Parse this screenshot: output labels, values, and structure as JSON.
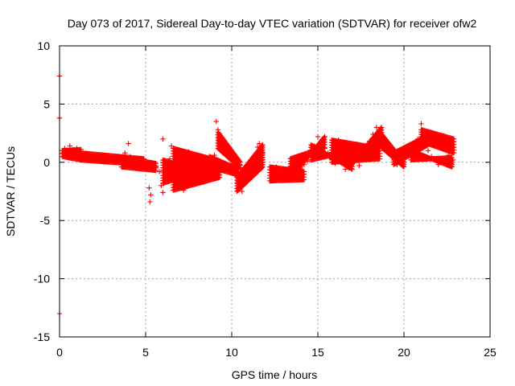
{
  "chart_data": {
    "type": "scatter",
    "title": "Day 073 of 2017, Sidereal Day-to-day VTEC variation (SDTVAR) for receiver ofw2",
    "xlabel": "GPS time / hours",
    "ylabel": "SDTVAR / TECUs",
    "xlim": [
      0,
      25
    ],
    "ylim": [
      -15,
      10
    ],
    "xticks": [
      0,
      5,
      10,
      15,
      20,
      25
    ],
    "yticks": [
      -15,
      -10,
      -5,
      0,
      5,
      10
    ],
    "xtick_labels": [
      "0",
      "5",
      "10",
      "15",
      "20",
      "25"
    ],
    "ytick_labels": [
      "-15",
      "-10",
      "-5",
      "0",
      "5",
      "10"
    ],
    "grid": true,
    "marker": "plus",
    "series_color": "#ff0000",
    "series": [
      {
        "name": "SDTVAR",
        "points": [
          [
            0.0,
            7.4
          ],
          [
            0.0,
            3.8
          ],
          [
            0.0,
            -13.0
          ],
          [
            0.2,
            0.8
          ],
          [
            0.3,
            1.2
          ],
          [
            0.4,
            0.6
          ],
          [
            0.5,
            1.0
          ],
          [
            0.6,
            1.4
          ],
          [
            0.7,
            0.5
          ],
          [
            0.8,
            1.1
          ],
          [
            0.9,
            0.7
          ],
          [
            1.0,
            1.2
          ],
          [
            1.1,
            0.4
          ],
          [
            1.2,
            0.9
          ],
          [
            1.4,
            0.6
          ],
          [
            1.6,
            0.3
          ],
          [
            1.8,
            0.5
          ],
          [
            2.0,
            0.2
          ],
          [
            2.2,
            0.4
          ],
          [
            2.4,
            0.1
          ],
          [
            2.6,
            0.3
          ],
          [
            2.8,
            0.5
          ],
          [
            3.0,
            0.2
          ],
          [
            3.2,
            0.0
          ],
          [
            3.4,
            0.4
          ],
          [
            3.6,
            0.2
          ],
          [
            3.8,
            0.8
          ],
          [
            4.0,
            1.6
          ],
          [
            4.1,
            0.5
          ],
          [
            4.2,
            -0.2
          ],
          [
            4.4,
            0.3
          ],
          [
            4.6,
            0.1
          ],
          [
            4.8,
            -0.2
          ],
          [
            5.0,
            -0.5
          ],
          [
            5.2,
            -0.3
          ],
          [
            5.4,
            -0.6
          ],
          [
            5.6,
            -0.4
          ],
          [
            5.8,
            -0.8
          ],
          [
            5.2,
            -2.2
          ],
          [
            5.3,
            -2.8
          ],
          [
            5.25,
            -3.4
          ],
          [
            5.9,
            -2.0
          ],
          [
            6.0,
            -2.6
          ],
          [
            6.0,
            2.0
          ],
          [
            6.2,
            -0.5
          ],
          [
            6.4,
            0.3
          ],
          [
            6.5,
            1.4
          ],
          [
            6.6,
            -1.0
          ],
          [
            6.8,
            -1.8
          ],
          [
            7.0,
            -0.8
          ],
          [
            7.2,
            -2.4
          ],
          [
            7.4,
            -1.2
          ],
          [
            7.5,
            0.9
          ],
          [
            7.6,
            -0.6
          ],
          [
            7.8,
            0.1
          ],
          [
            8.0,
            -0.4
          ],
          [
            8.2,
            -1.0
          ],
          [
            8.4,
            -0.7
          ],
          [
            8.6,
            -1.2
          ],
          [
            8.8,
            -0.2
          ],
          [
            9.0,
            0.6
          ],
          [
            9.1,
            3.5
          ],
          [
            9.2,
            2.8
          ],
          [
            9.3,
            2.2
          ],
          [
            9.4,
            1.5
          ],
          [
            9.6,
            0.9
          ],
          [
            9.8,
            0.4
          ],
          [
            10.0,
            -0.1
          ],
          [
            10.2,
            -0.8
          ],
          [
            10.4,
            -1.6
          ],
          [
            10.6,
            -2.5
          ],
          [
            10.8,
            -1.8
          ],
          [
            11.0,
            -1.1
          ],
          [
            11.2,
            -0.6
          ],
          [
            11.4,
            -0.2
          ],
          [
            11.5,
            1.3
          ],
          [
            11.6,
            1.6
          ],
          [
            11.8,
            0.8
          ],
          [
            12.4,
            -1.0
          ],
          [
            12.6,
            -0.4
          ],
          [
            12.8,
            -1.4
          ],
          [
            13.0,
            -0.8
          ],
          [
            13.2,
            -1.2
          ],
          [
            13.4,
            -0.6
          ],
          [
            13.6,
            -1.4
          ],
          [
            13.8,
            -1.0
          ],
          [
            14.0,
            -0.5
          ],
          [
            14.2,
            -0.2
          ],
          [
            14.4,
            0.1
          ],
          [
            14.6,
            0.6
          ],
          [
            14.8,
            1.4
          ],
          [
            15.0,
            2.2
          ],
          [
            15.2,
            1.8
          ],
          [
            15.4,
            1.2
          ],
          [
            15.6,
            0.8
          ],
          [
            15.8,
            0.3
          ],
          [
            16.0,
            -0.1
          ],
          [
            16.2,
            1.9
          ],
          [
            16.4,
            0.6
          ],
          [
            16.6,
            -0.6
          ],
          [
            16.8,
            -0.4
          ],
          [
            17.0,
            0.9
          ],
          [
            17.2,
            0.3
          ],
          [
            17.4,
            -0.3
          ],
          [
            17.6,
            0.5
          ],
          [
            17.8,
            1.2
          ],
          [
            18.0,
            1.8
          ],
          [
            18.2,
            2.4
          ],
          [
            18.4,
            3.0
          ],
          [
            18.6,
            2.6
          ],
          [
            18.8,
            1.9
          ],
          [
            19.0,
            1.3
          ],
          [
            19.2,
            0.8
          ],
          [
            19.4,
            0.2
          ],
          [
            19.6,
            -0.2
          ],
          [
            19.8,
            0.3
          ],
          [
            20.0,
            0.7
          ],
          [
            20.2,
            1.0
          ],
          [
            20.4,
            1.3
          ],
          [
            20.6,
            1.6
          ],
          [
            20.8,
            2.0
          ],
          [
            21.0,
            3.3
          ],
          [
            21.1,
            2.6
          ],
          [
            21.2,
            1.8
          ],
          [
            21.4,
            1.0
          ],
          [
            21.6,
            0.5
          ],
          [
            21.8,
            0.2
          ],
          [
            22.0,
            -0.2
          ],
          [
            22.2,
            1.4
          ],
          [
            22.4,
            2.1
          ],
          [
            22.6,
            0.6
          ],
          [
            22.8,
            1.2
          ],
          [
            22.85,
            0.2
          ]
        ],
        "bands": [
          {
            "x0": 0.15,
            "x1": 1.25,
            "y0a": 0.5,
            "y0b": 1.0,
            "y1a": 0.2,
            "y1b": 1.1
          },
          {
            "x0": 1.2,
            "x1": 4.9,
            "y0a": 0.2,
            "y0b": 0.8,
            "y1a": -0.2,
            "y1b": 0.3
          },
          {
            "x0": 3.6,
            "x1": 5.6,
            "y0a": 0.4,
            "y0b": -0.4,
            "y1a": -0.1,
            "y1b": -0.7
          },
          {
            "x0": 6.0,
            "x1": 8.7,
            "y0a": 0.2,
            "y0b": -1.8,
            "y1a": -1.0,
            "y1b": -0.6
          },
          {
            "x0": 6.6,
            "x1": 9.3,
            "y0a": 1.2,
            "y0b": -2.4,
            "y1a": 0.1,
            "y1b": -1.3
          },
          {
            "x0": 8.7,
            "x1": 10.4,
            "y0a": 0.5,
            "y0b": -0.4,
            "y1a": -0.6,
            "y1b": -1.1
          },
          {
            "x0": 9.2,
            "x1": 10.5,
            "y0a": 2.6,
            "y0b": 1.2,
            "y1a": 0.0,
            "y1b": -0.5
          },
          {
            "x0": 10.3,
            "x1": 11.8,
            "y0a": -1.3,
            "y0b": -2.5,
            "y1a": 1.5,
            "y1b": -0.4
          },
          {
            "x0": 12.2,
            "x1": 14.2,
            "y0a": -0.4,
            "y0b": -1.6,
            "y1a": -0.8,
            "y1b": -1.5
          },
          {
            "x0": 13.4,
            "x1": 15.4,
            "y0a": -1.4,
            "y0b": 0.3,
            "y1a": 2.2,
            "y1b": 1.3
          },
          {
            "x0": 14.6,
            "x1": 17.0,
            "y0a": 1.5,
            "y0b": 0.2,
            "y1a": -0.6,
            "y1b": 1.0
          },
          {
            "x0": 15.8,
            "x1": 18.6,
            "y0a": 1.9,
            "y0b": 0.0,
            "y1a": 1.2,
            "y1b": 0.3
          },
          {
            "x0": 16.8,
            "x1": 18.7,
            "y0a": -0.5,
            "y0b": 0.4,
            "y1a": 3.0,
            "y1b": 1.7
          },
          {
            "x0": 18.6,
            "x1": 20.0,
            "y0a": 2.6,
            "y0b": 1.4,
            "y1a": 0.0,
            "y1b": -0.4
          },
          {
            "x0": 19.4,
            "x1": 21.4,
            "y0a": -0.2,
            "y0b": 0.8,
            "y1a": 1.5,
            "y1b": 2.3
          },
          {
            "x0": 20.4,
            "x1": 22.8,
            "y0a": 1.0,
            "y0b": 0.2,
            "y1a": -0.4,
            "y1b": 0.4
          },
          {
            "x0": 21.0,
            "x1": 22.9,
            "y0a": 2.8,
            "y0b": 1.8,
            "y1a": 2.0,
            "y1b": 0.8
          }
        ]
      }
    ]
  }
}
